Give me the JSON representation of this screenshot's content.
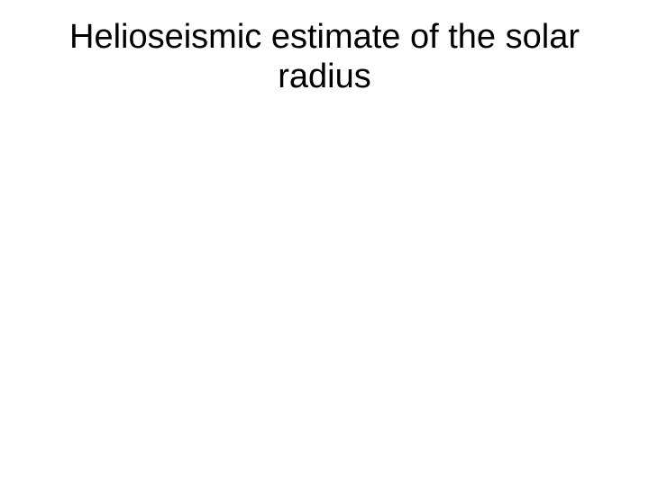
{
  "slide": {
    "title": "Helioseismic estimate of the solar radius",
    "title_fontsize": 38,
    "title_color": "#000000",
    "background_color": "#ffffff",
    "font_family": "Arial"
  }
}
